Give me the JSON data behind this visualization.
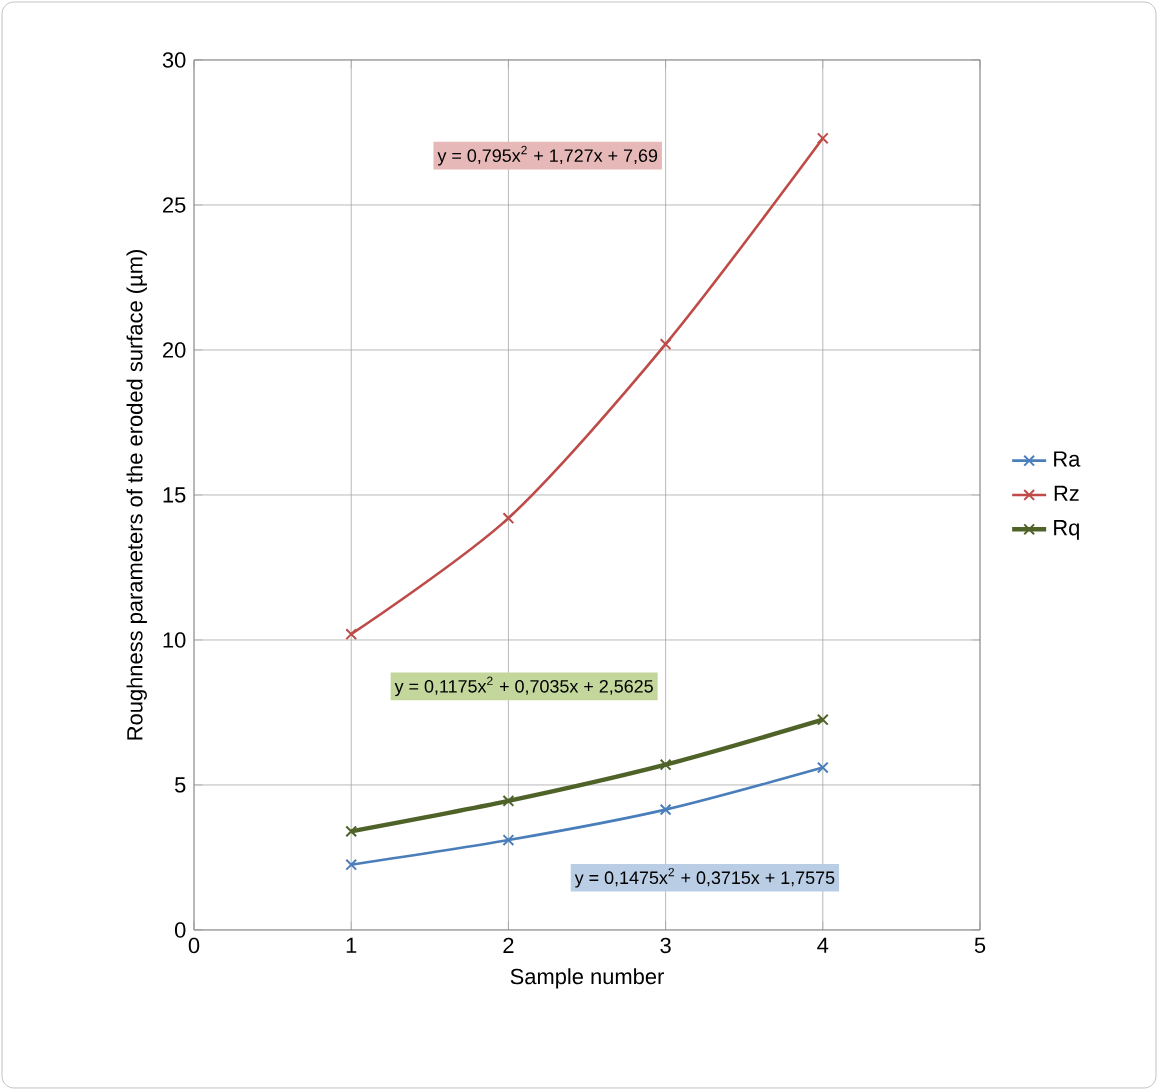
{
  "chart_data": {
    "type": "line",
    "xlabel": "Sample number",
    "ylabel": "Roughness parameters of the eroded surface (µm)",
    "x": [
      1,
      2,
      3,
      4
    ],
    "series": [
      {
        "name": "Ra",
        "color": "#4a7ebb",
        "values": [
          2.25,
          3.1,
          4.15,
          5.6
        ]
      },
      {
        "name": "Rz",
        "color": "#be4b48",
        "values": [
          10.2,
          14.2,
          20.2,
          27.3
        ]
      },
      {
        "name": "Rq",
        "color": "#4f6228",
        "values": [
          3.4,
          4.45,
          5.7,
          7.25
        ]
      }
    ],
    "annotations": [
      "y = 0,795x$^{2}$ + 1,727x + 7,69",
      "y = 0,1175x$^{2}$ + 0,7035x + 2,5625",
      "y = 0,1475x$^{2}$ + 0,3715x + 1,7575"
    ],
    "xlim": [
      0,
      5
    ],
    "xticks": [
      0,
      1,
      2,
      3,
      4,
      5
    ],
    "ylim": [
      0,
      30
    ],
    "yticks": [
      0,
      5,
      10,
      15,
      20,
      25,
      30
    ],
    "grid": true,
    "legend": "right",
    "marker": "cross",
    "line_style": "solid"
  }
}
